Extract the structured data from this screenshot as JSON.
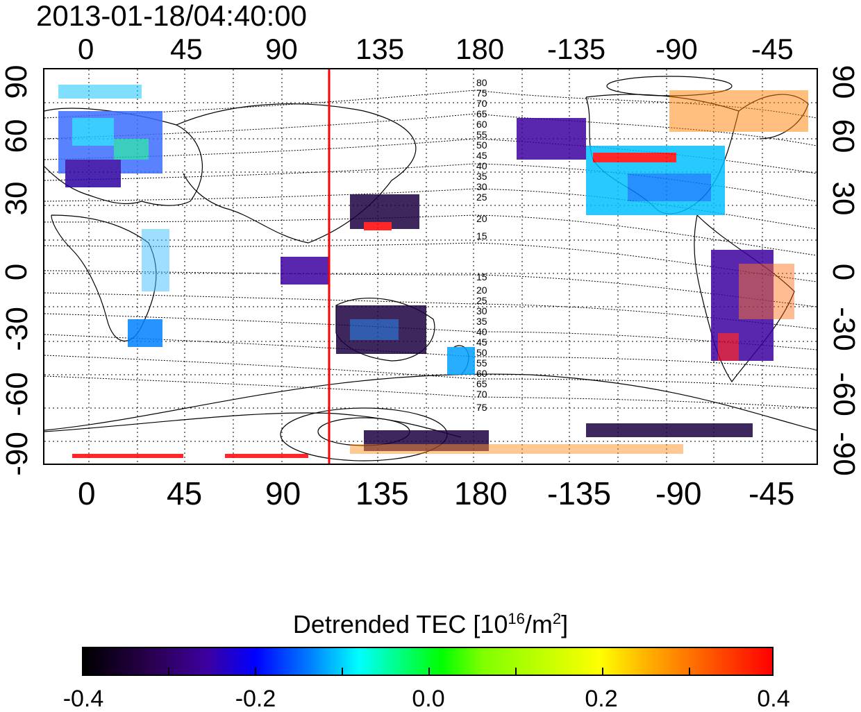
{
  "timestamp": "2013-01-18/04:40:00",
  "top_ticks": [
    "0",
    "45",
    "90",
    "135",
    "180",
    "-135",
    "-90",
    "-45"
  ],
  "bottom_ticks": [
    "0",
    "45",
    "90",
    "135",
    "180",
    "-135",
    "-90",
    "-45"
  ],
  "left_ticks": [
    "90",
    "60",
    "30",
    "0",
    "-30",
    "-60",
    "-90"
  ],
  "right_ticks": [
    "90",
    "60",
    "30",
    "0",
    "-30",
    "-60",
    "-90"
  ],
  "contour_labels_north": [
    "80",
    "75",
    "70",
    "65",
    "60",
    "55",
    "50",
    "45",
    "40",
    "35",
    "30",
    "25",
    "20",
    "15"
  ],
  "contour_labels_south": [
    "15",
    "20",
    "25",
    "30",
    "35",
    "40",
    "45",
    "50",
    "55",
    "60",
    "65",
    "70",
    "75"
  ],
  "colorbar": {
    "title_main": "Detrended TEC  [10",
    "title_exp": "16",
    "title_unit": "/m",
    "title_exp2": "2",
    "title_end": "]",
    "tick_labels": [
      "-0.4",
      "-0.2",
      "0.0",
      "0.2",
      "0.4"
    ]
  },
  "colors": {
    "marker_line": "#ff0000",
    "frame": "#000000"
  }
}
